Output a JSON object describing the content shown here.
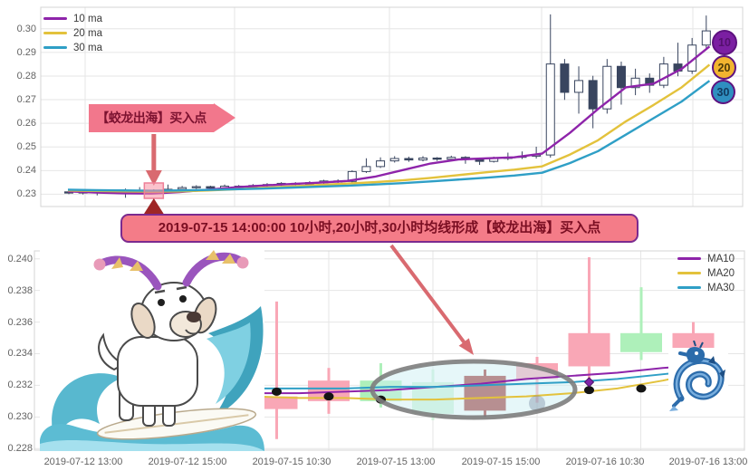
{
  "colors": {
    "ma10": "#8e24aa",
    "ma20": "#e3c23c",
    "ma30": "#2f9fc6",
    "candle_up_fill": "#ffffff",
    "candle_outline": "#39455f",
    "candle_down_fill": "#39455f",
    "bottom_up": "#aef0ba",
    "bottom_down": "#f9a7b6",
    "bottom_signal": "#a12f2f",
    "bottom_faded": "#cff2d8",
    "grid": "#e6e6e6",
    "plot_border": "#d4d4d4",
    "arrow": "#d96a70",
    "highlight_fill": "rgba(247,143,162,0.55)",
    "highlight_stroke": "#ee7f97",
    "buy_triangle": "#9e2626",
    "ellipse_stroke": "#7d7d7d",
    "ellipse_fill": "rgba(205,240,243,0.5)"
  },
  "banner": {
    "text": "2019-07-15 14:00:00 10小时,20小时,30小时均线形成【蛟龙出海】买入点"
  },
  "top_chart": {
    "legend": [
      "10 ma",
      "20 ma",
      "30 ma"
    ],
    "badges": [
      "10",
      "20",
      "30"
    ],
    "callout_text": "【蛟龙出海】买入点"
  },
  "bottom_chart": {
    "legend": [
      "MA10",
      "MA20",
      "MA30"
    ]
  },
  "chart_data": [
    {
      "type": "candlestick",
      "panel": "top",
      "title": "",
      "xlabel": "",
      "ylabel": "",
      "grid": true,
      "legend_position": "top-left",
      "ylim": [
        0.2248,
        0.3091
      ],
      "y_ticks": [
        0.3,
        0.29,
        0.28,
        0.27,
        0.26,
        0.25,
        0.24,
        0.23
      ],
      "buy_candle_index": 6,
      "candles_ohlc": [
        [
          0.231,
          0.2316,
          0.23,
          0.2305
        ],
        [
          0.2305,
          0.2315,
          0.2299,
          0.231
        ],
        [
          0.231,
          0.232,
          0.2295,
          0.2307
        ],
        [
          0.2307,
          0.2318,
          0.2303,
          0.2312
        ],
        [
          0.2312,
          0.2324,
          0.2285,
          0.2306
        ],
        [
          0.2306,
          0.233,
          0.23,
          0.2311
        ],
        [
          0.2308,
          0.2321,
          0.2302,
          0.2316
        ],
        [
          0.2316,
          0.2341,
          0.231,
          0.2321
        ],
        [
          0.2321,
          0.2335,
          0.2315,
          0.2328
        ],
        [
          0.2328,
          0.2338,
          0.2322,
          0.2332
        ],
        [
          0.2332,
          0.2336,
          0.2319,
          0.2326
        ],
        [
          0.2326,
          0.2341,
          0.2323,
          0.2334
        ],
        [
          0.2334,
          0.2339,
          0.2325,
          0.233
        ],
        [
          0.233,
          0.2343,
          0.2326,
          0.2337
        ],
        [
          0.2337,
          0.2347,
          0.2331,
          0.2341
        ],
        [
          0.2341,
          0.2351,
          0.2335,
          0.2346
        ],
        [
          0.2346,
          0.2351,
          0.2337,
          0.2342
        ],
        [
          0.2342,
          0.2355,
          0.2339,
          0.2349
        ],
        [
          0.2349,
          0.2361,
          0.2343,
          0.2356
        ],
        [
          0.2356,
          0.2363,
          0.2334,
          0.2352
        ],
        [
          0.2354,
          0.2401,
          0.2349,
          0.2396
        ],
        [
          0.2396,
          0.2452,
          0.239,
          0.2417
        ],
        [
          0.2417,
          0.2456,
          0.2411,
          0.2441
        ],
        [
          0.2441,
          0.2461,
          0.2434,
          0.2451
        ],
        [
          0.2451,
          0.2459,
          0.2437,
          0.2445
        ],
        [
          0.2445,
          0.2461,
          0.2439,
          0.2453
        ],
        [
          0.2453,
          0.2457,
          0.2441,
          0.2448
        ],
        [
          0.2448,
          0.2463,
          0.2443,
          0.2456
        ],
        [
          0.2456,
          0.2461,
          0.2429,
          0.2449
        ],
        [
          0.2449,
          0.2455,
          0.2424,
          0.2439
        ],
        [
          0.2439,
          0.2459,
          0.2434,
          0.2452
        ],
        [
          0.2452,
          0.2476,
          0.2444,
          0.2456
        ],
        [
          0.2456,
          0.2481,
          0.2449,
          0.2461
        ],
        [
          0.2461,
          0.2501,
          0.2451,
          0.2466
        ],
        [
          0.2466,
          0.3061,
          0.2455,
          0.2851
        ],
        [
          0.2851,
          0.2872,
          0.2699,
          0.2731
        ],
        [
          0.2731,
          0.2841,
          0.2641,
          0.2781
        ],
        [
          0.2781,
          0.2801,
          0.2579,
          0.2661
        ],
        [
          0.2661,
          0.2872,
          0.2641,
          0.2841
        ],
        [
          0.2841,
          0.2861,
          0.2679,
          0.2751
        ],
        [
          0.2751,
          0.2831,
          0.2719,
          0.2791
        ],
        [
          0.2791,
          0.2811,
          0.2729,
          0.2761
        ],
        [
          0.2761,
          0.2881,
          0.2749,
          0.2851
        ],
        [
          0.2851,
          0.2941,
          0.2799,
          0.2821
        ],
        [
          0.2821,
          0.2961,
          0.2809,
          0.2931
        ],
        [
          0.2931,
          0.3056,
          0.2919,
          0.2991
        ]
      ],
      "series": [
        {
          "name": "10 ma",
          "color_key": "ma10",
          "values": [
            0.2312,
            0.2307,
            0.2304,
            0.2303,
            0.2309,
            0.2319,
            0.2329,
            0.2337,
            0.2343,
            0.2349,
            0.2356,
            0.2374,
            0.2402,
            0.243,
            0.2447,
            0.2452,
            0.2456,
            0.2472,
            0.256,
            0.266,
            0.2752,
            0.2768,
            0.283,
            0.2925
          ]
        },
        {
          "name": "20 ma",
          "color_key": "ma20",
          "values": [
            0.2316,
            0.2314,
            0.2312,
            0.2311,
            0.2312,
            0.2316,
            0.2321,
            0.2327,
            0.2333,
            0.2339,
            0.2345,
            0.2351,
            0.2359,
            0.2369,
            0.2381,
            0.2393,
            0.2404,
            0.2418,
            0.2468,
            0.2528,
            0.2608,
            0.2678,
            0.2752,
            0.2848
          ]
        },
        {
          "name": "30 ma",
          "color_key": "ma30",
          "values": [
            0.2319,
            0.2317,
            0.2316,
            0.2315,
            0.2316,
            0.2318,
            0.2321,
            0.2324,
            0.2328,
            0.2332,
            0.2336,
            0.2341,
            0.2347,
            0.2354,
            0.2362,
            0.237,
            0.2379,
            0.2391,
            0.2432,
            0.2482,
            0.2552,
            0.2622,
            0.2692,
            0.278
          ]
        }
      ]
    },
    {
      "type": "candlestick",
      "panel": "bottom",
      "title": "",
      "xlabel": "",
      "ylabel": "",
      "grid": true,
      "legend_position": "top-right",
      "ylim": [
        0.2279,
        0.2405
      ],
      "y_ticks": [
        0.24,
        0.238,
        0.236,
        0.234,
        0.232,
        0.23,
        0.228
      ],
      "x_ticks": [
        "2019-07-12 13:00",
        "2019-07-12 15:00",
        "2019-07-15 10:30",
        "2019-07-15 13:00",
        "2019-07-15 15:00",
        "2019-07-16 10:30",
        "2019-07-16 13:00"
      ],
      "candles": [
        {
          "o": 0.2313,
          "h": 0.2373,
          "l": 0.2286,
          "c": 0.2305,
          "kind": "down"
        },
        {
          "o": 0.2323,
          "h": 0.2331,
          "l": 0.2302,
          "c": 0.231,
          "kind": "down"
        },
        {
          "o": 0.231,
          "h": 0.2334,
          "l": 0.2306,
          "c": 0.2323,
          "kind": "up"
        },
        {
          "o": 0.2302,
          "h": 0.233,
          "l": 0.2298,
          "c": 0.2322,
          "kind": "faded"
        },
        {
          "o": 0.2326,
          "h": 0.233,
          "l": 0.23,
          "c": 0.2304,
          "kind": "signal"
        },
        {
          "o": 0.2334,
          "h": 0.2338,
          "l": 0.2309,
          "c": 0.2324,
          "kind": "down"
        },
        {
          "o": 0.2353,
          "h": 0.2401,
          "l": 0.2319,
          "c": 0.2332,
          "kind": "down"
        },
        {
          "o": 0.2341,
          "h": 0.2382,
          "l": 0.2336,
          "c": 0.2353,
          "kind": "up"
        },
        {
          "o": 0.2353,
          "h": 0.236,
          "l": 0.233,
          "c": 0.2341,
          "kind": "down"
        }
      ],
      "series": [
        {
          "name": "MA10",
          "color_key": "ma10",
          "values": [
            0.2315,
            0.2315,
            0.2316,
            0.2317,
            0.2319,
            0.2321,
            0.2324,
            0.2326,
            0.2328,
            0.2331,
            0.2333
          ]
        },
        {
          "name": "MA20",
          "color_key": "ma20",
          "values": [
            0.2313,
            0.2312,
            0.2312,
            0.2311,
            0.2311,
            0.2312,
            0.2313,
            0.2315,
            0.2318,
            0.2323,
            0.2329
          ]
        },
        {
          "name": "MA30",
          "color_key": "ma30",
          "values": [
            0.2318,
            0.2318,
            0.2318,
            0.2319,
            0.2319,
            0.232,
            0.2321,
            0.2322,
            0.2324,
            0.2327,
            0.233
          ]
        }
      ],
      "markers": {
        "dots": [
          {
            "candle": 0,
            "price": 0.2316
          },
          {
            "candle": 1,
            "price": 0.2313
          },
          {
            "candle": 2,
            "price": 0.2311
          },
          {
            "candle": 6,
            "price": 0.2317
          },
          {
            "candle": 7,
            "price": 0.2318
          }
        ],
        "faded_dot": {
          "candle": 5,
          "price": 0.2312
        },
        "diamond": {
          "candle": 6,
          "price": 0.2322
        }
      },
      "highlight_ellipse": {
        "center_candle": 4
      }
    }
  ]
}
